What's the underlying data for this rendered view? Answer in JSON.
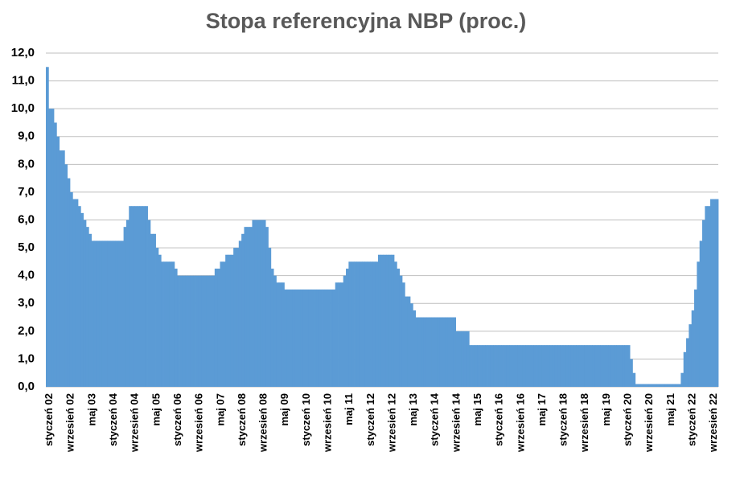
{
  "chart_data": {
    "type": "area",
    "title": "Stopa referencyjna NBP (proc.)",
    "color": "#5b9bd5",
    "grid": true,
    "ylim": [
      0,
      12
    ],
    "yticks": [
      {
        "value": 0,
        "label": "0,0"
      },
      {
        "value": 1,
        "label": "1,0"
      },
      {
        "value": 2,
        "label": "2,0"
      },
      {
        "value": 3,
        "label": "3,0"
      },
      {
        "value": 4,
        "label": "4,0"
      },
      {
        "value": 5,
        "label": "5,0"
      },
      {
        "value": 6,
        "label": "6,0"
      },
      {
        "value": 7,
        "label": "7,0"
      },
      {
        "value": 8,
        "label": "8,0"
      },
      {
        "value": 9,
        "label": "9,0"
      },
      {
        "value": 10,
        "label": "10,0"
      },
      {
        "value": 11,
        "label": "11,0"
      },
      {
        "value": 12,
        "label": "12,0"
      }
    ],
    "categories": [
      "styczeń 02",
      null,
      null,
      null,
      null,
      null,
      null,
      null,
      "wrzesień 02",
      null,
      null,
      null,
      null,
      null,
      null,
      null,
      "maj 03",
      null,
      null,
      null,
      null,
      null,
      null,
      null,
      "styczeń 04",
      null,
      null,
      null,
      null,
      null,
      null,
      null,
      "wrzesień 04",
      null,
      null,
      null,
      null,
      null,
      null,
      null,
      "maj 05",
      null,
      null,
      null,
      null,
      null,
      null,
      null,
      "styczeń 06",
      null,
      null,
      null,
      null,
      null,
      null,
      null,
      "wrzesień 06",
      null,
      null,
      null,
      null,
      null,
      null,
      null,
      "maj 07",
      null,
      null,
      null,
      null,
      null,
      null,
      null,
      "styczeń 08",
      null,
      null,
      null,
      null,
      null,
      null,
      null,
      "wrzesień 08",
      null,
      null,
      null,
      null,
      null,
      null,
      null,
      "maj 09",
      null,
      null,
      null,
      null,
      null,
      null,
      null,
      "styczeń 10",
      null,
      null,
      null,
      null,
      null,
      null,
      null,
      "wrzesień 10",
      null,
      null,
      null,
      null,
      null,
      null,
      null,
      "maj 11",
      null,
      null,
      null,
      null,
      null,
      null,
      null,
      "styczeń 12",
      null,
      null,
      null,
      null,
      null,
      null,
      null,
      "wrzesień 12",
      null,
      null,
      null,
      null,
      null,
      null,
      null,
      "maj 13",
      null,
      null,
      null,
      null,
      null,
      null,
      null,
      "styczeń 14",
      null,
      null,
      null,
      null,
      null,
      null,
      null,
      "wrzesień 14",
      null,
      null,
      null,
      null,
      null,
      null,
      null,
      "maj 15",
      null,
      null,
      null,
      null,
      null,
      null,
      null,
      "styczeń 16",
      null,
      null,
      null,
      null,
      null,
      null,
      null,
      "wrzesień 16",
      null,
      null,
      null,
      null,
      null,
      null,
      null,
      "maj 17",
      null,
      null,
      null,
      null,
      null,
      null,
      null,
      "styczeń 18",
      null,
      null,
      null,
      null,
      null,
      null,
      null,
      "wrzesień 18",
      null,
      null,
      null,
      null,
      null,
      null,
      null,
      "maj 19",
      null,
      null,
      null,
      null,
      null,
      null,
      null,
      "styczeń 20",
      null,
      null,
      null,
      null,
      null,
      null,
      null,
      "wrzesień 20",
      null,
      null,
      null,
      null,
      null,
      null,
      null,
      "maj 21",
      null,
      null,
      null,
      null,
      null,
      null,
      null,
      "styczeń 22",
      null,
      null,
      null,
      null,
      null,
      null,
      null,
      "wrzesień 22",
      null,
      null
    ],
    "values": [
      11.5,
      10.0,
      10.0,
      9.5,
      9.0,
      8.5,
      8.5,
      8.0,
      7.5,
      7.0,
      6.75,
      6.75,
      6.5,
      6.25,
      6.0,
      5.75,
      5.5,
      5.25,
      5.25,
      5.25,
      5.25,
      5.25,
      5.25,
      5.25,
      5.25,
      5.25,
      5.25,
      5.25,
      5.25,
      5.75,
      6.0,
      6.5,
      6.5,
      6.5,
      6.5,
      6.5,
      6.5,
      6.5,
      6.0,
      5.5,
      5.5,
      5.0,
      4.75,
      4.5,
      4.5,
      4.5,
      4.5,
      4.5,
      4.25,
      4.0,
      4.0,
      4.0,
      4.0,
      4.0,
      4.0,
      4.0,
      4.0,
      4.0,
      4.0,
      4.0,
      4.0,
      4.0,
      4.0,
      4.25,
      4.25,
      4.5,
      4.5,
      4.75,
      4.75,
      4.75,
      5.0,
      5.0,
      5.25,
      5.5,
      5.75,
      5.75,
      5.75,
      6.0,
      6.0,
      6.0,
      6.0,
      6.0,
      5.75,
      5.0,
      4.25,
      4.0,
      3.75,
      3.75,
      3.75,
      3.5,
      3.5,
      3.5,
      3.5,
      3.5,
      3.5,
      3.5,
      3.5,
      3.5,
      3.5,
      3.5,
      3.5,
      3.5,
      3.5,
      3.5,
      3.5,
      3.5,
      3.5,
      3.5,
      3.75,
      3.75,
      3.75,
      4.0,
      4.25,
      4.5,
      4.5,
      4.5,
      4.5,
      4.5,
      4.5,
      4.5,
      4.5,
      4.5,
      4.5,
      4.5,
      4.75,
      4.75,
      4.75,
      4.75,
      4.75,
      4.75,
      4.5,
      4.25,
      4.0,
      3.75,
      3.25,
      3.25,
      3.0,
      2.75,
      2.5,
      2.5,
      2.5,
      2.5,
      2.5,
      2.5,
      2.5,
      2.5,
      2.5,
      2.5,
      2.5,
      2.5,
      2.5,
      2.5,
      2.5,
      2.0,
      2.0,
      2.0,
      2.0,
      2.0,
      1.5,
      1.5,
      1.5,
      1.5,
      1.5,
      1.5,
      1.5,
      1.5,
      1.5,
      1.5,
      1.5,
      1.5,
      1.5,
      1.5,
      1.5,
      1.5,
      1.5,
      1.5,
      1.5,
      1.5,
      1.5,
      1.5,
      1.5,
      1.5,
      1.5,
      1.5,
      1.5,
      1.5,
      1.5,
      1.5,
      1.5,
      1.5,
      1.5,
      1.5,
      1.5,
      1.5,
      1.5,
      1.5,
      1.5,
      1.5,
      1.5,
      1.5,
      1.5,
      1.5,
      1.5,
      1.5,
      1.5,
      1.5,
      1.5,
      1.5,
      1.5,
      1.5,
      1.5,
      1.5,
      1.5,
      1.5,
      1.5,
      1.5,
      1.5,
      1.5,
      1.0,
      0.5,
      0.1,
      0.1,
      0.1,
      0.1,
      0.1,
      0.1,
      0.1,
      0.1,
      0.1,
      0.1,
      0.1,
      0.1,
      0.1,
      0.1,
      0.1,
      0.1,
      0.1,
      0.5,
      1.25,
      1.75,
      2.25,
      2.75,
      3.5,
      4.5,
      5.25,
      6.0,
      6.5,
      6.5,
      6.75,
      6.75,
      6.75
    ]
  }
}
